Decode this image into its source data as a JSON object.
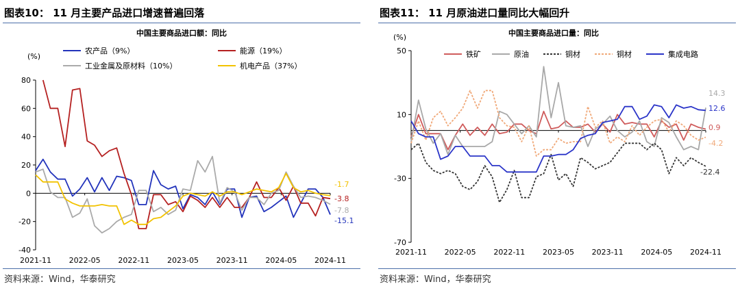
{
  "charts": [
    {
      "figure_title": "图表10：  11 月主要产品进口增速普遍回落",
      "source": "资料来源：Wind，华泰研究"
    },
    {
      "figure_title": "图表11：  11 月原油进口量同比大幅回升",
      "source": "资料来源：Wind，华泰研究"
    }
  ],
  "chart_data": [
    {
      "type": "line",
      "title": "中国主要商品进口额：同比",
      "ylabel": "(%)",
      "ylim": [
        -40,
        80
      ],
      "yticks": [
        -40,
        -20,
        0,
        20,
        40,
        60,
        80
      ],
      "x_tick_labels": [
        "2021-11",
        "2022-05",
        "2022-11",
        "2023-05",
        "2023-11",
        "2024-05",
        "2024-11"
      ],
      "legend_position": "top",
      "series": [
        {
          "name": "农产品（9%）",
          "color": "#2233bb",
          "dash": "",
          "end_label": "-15.1",
          "values": [
            16,
            24,
            15,
            10,
            10,
            -2,
            3,
            11,
            1,
            11,
            2,
            12,
            11,
            9,
            -8,
            -8,
            16,
            6,
            3,
            5,
            -11,
            -1,
            -3,
            -8,
            1,
            -8,
            3,
            3,
            -17,
            -3,
            -2,
            -13,
            -10,
            -6,
            -2,
            -17,
            -7,
            3,
            3,
            -3,
            -15.1
          ]
        },
        {
          "name": "能源（19%）",
          "color": "#b52020",
          "dash": "",
          "end_label": "-3.8",
          "values": [
            null,
            80,
            60,
            60,
            33,
            73,
            74,
            37,
            34,
            26,
            30,
            32,
            14,
            -1,
            -25,
            -25,
            -1,
            -1,
            -8,
            -6,
            -13,
            -2,
            -5,
            -10,
            -3,
            -10,
            -3,
            -10,
            -10,
            -3,
            8,
            -3,
            -3,
            4,
            -5,
            5,
            -7,
            -7,
            -16,
            -3,
            -3.8
          ]
        },
        {
          "name": "工业金属及原材料（10%）",
          "color": "#aaaaaa",
          "dash": "",
          "end_label": "-7.8",
          "values": [
            15,
            17,
            1,
            -3,
            -3,
            -17,
            -14,
            -4,
            -23,
            -28,
            -25,
            -20,
            -17,
            -15,
            2,
            2,
            -13,
            -10,
            -15,
            -12,
            3,
            2,
            23,
            15,
            26,
            -7,
            4,
            1,
            -12,
            -3,
            -3,
            -8,
            0,
            2,
            15,
            5,
            -3,
            -2,
            -3,
            -5,
            -7.8
          ]
        },
        {
          "name": "机电产品（37%）",
          "color": "#f2c200",
          "dash": "",
          "end_label": "-1.7",
          "values": [
            13,
            8,
            8,
            8,
            -4,
            -7,
            -9,
            -9,
            -9,
            -8,
            -9,
            -9,
            -22,
            -19,
            -22,
            -22,
            -18,
            -17,
            -13,
            -9,
            -2,
            0,
            -1,
            -2,
            1,
            -2,
            1,
            1,
            -1,
            1,
            3,
            2,
            1,
            4,
            14,
            4,
            1,
            2,
            0,
            -1,
            -1.7
          ]
        }
      ]
    },
    {
      "type": "line",
      "title": "中国主要商品进口量：同比",
      "ylabel": "(%)",
      "ylim": [
        -70,
        50
      ],
      "yticks": [
        -70,
        -30,
        10,
        50
      ],
      "x_tick_labels": [
        "2021-11",
        "2022-05",
        "2022-11",
        "2023-05",
        "2023-11",
        "2024-05",
        "2024-11"
      ],
      "legend_position": "top",
      "series": [
        {
          "name": "铁矿",
          "color": "#cf5b5b",
          "dash": "",
          "end_label": "0.9",
          "values": [
            -4,
            10,
            -2,
            -2,
            -2,
            -12,
            -3,
            4,
            -3,
            2,
            -3,
            4,
            -2,
            -1,
            4,
            4,
            0,
            -2,
            12,
            1,
            2,
            6,
            2,
            2,
            4,
            -1,
            4,
            -1,
            10,
            4,
            5,
            4,
            4,
            -4,
            6,
            2,
            4,
            -6,
            4,
            2,
            0.9
          ]
        },
        {
          "name": "原油",
          "color": "#a8a8a8",
          "dash": "",
          "end_label": "14.3",
          "values": [
            -7,
            19,
            1,
            -8,
            -2,
            -15,
            -3,
            -10,
            -10,
            -10,
            -10,
            -7,
            12,
            10,
            4,
            -2,
            3,
            -4,
            40,
            8,
            30,
            3,
            2,
            3,
            -10,
            1,
            4,
            9,
            0,
            -4,
            -1,
            6,
            -7,
            -10,
            8,
            5,
            -4,
            -12,
            -10,
            -12,
            14.3
          ]
        },
        {
          "name": "铜材",
          "color": "#333333",
          "dash": "3,2",
          "end_label": "-22.4",
          "values": [
            -12,
            -8,
            -20,
            -25,
            -27,
            -25,
            -27,
            -35,
            -37,
            -32,
            -22,
            -29,
            -45,
            -37,
            -25,
            -42,
            -42,
            -29,
            -27,
            -15,
            -31,
            -27,
            -35,
            -17,
            -20,
            -24,
            -22,
            -20,
            -14,
            -8,
            -8,
            -8,
            -12,
            -8,
            -12,
            -27,
            -17,
            -22,
            -17,
            -20,
            -22.4
          ]
        },
        {
          "name": "铜材",
          "color": "#f0a878",
          "dash": "3,2",
          "end_label": "-4.2",
          "values": [
            -8,
            6,
            -6,
            8,
            12,
            3,
            8,
            14,
            25,
            14,
            25,
            25,
            8,
            3,
            2,
            -7,
            3,
            -16,
            -12,
            -12,
            -5,
            -8,
            -7,
            -7,
            15,
            2,
            6,
            -8,
            -4,
            -7,
            3,
            -3,
            2,
            6,
            7,
            -1,
            6,
            3,
            -3,
            -6,
            -4.2
          ]
        },
        {
          "name": "集成电路",
          "color": "#2a34c8",
          "dash": "",
          "end_label": "12.6",
          "values": [
            6,
            -2,
            -4,
            -4,
            -18,
            -16,
            -10,
            -10,
            -16,
            -16,
            -16,
            -22,
            -22,
            -26,
            -26,
            -26,
            -26,
            -26,
            -16,
            -16,
            -15,
            -15,
            -12,
            -5,
            -3,
            -2,
            5,
            6,
            7,
            15,
            15,
            7,
            9,
            16,
            15,
            8,
            16,
            14,
            15,
            13,
            12.6
          ]
        }
      ]
    }
  ]
}
